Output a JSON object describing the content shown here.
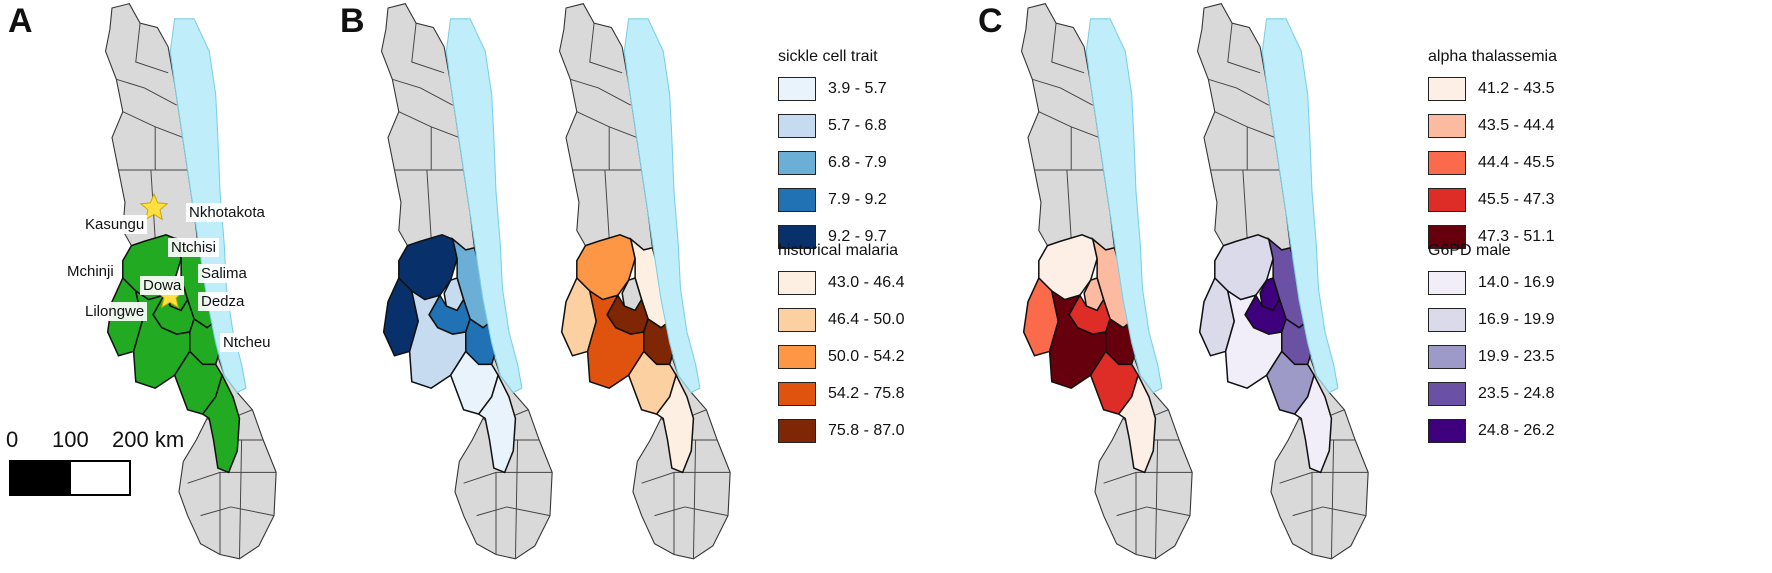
{
  "panels": {
    "a": {
      "label": "A",
      "districts": [
        "Kasungu",
        "Nkhotakota",
        "Ntchisi",
        "Mchinji",
        "Salima",
        "Dowa",
        "Dedza",
        "Lilongwe",
        "Ntcheu"
      ],
      "scale": {
        "zero": "0",
        "mid": "100",
        "end": "200 km"
      }
    },
    "b": {
      "label": "B",
      "legend_sickle": {
        "title": "sickle cell trait",
        "items": [
          {
            "range": "3.9 - 5.7",
            "color": "#e8f3fb"
          },
          {
            "range": "5.7 - 6.8",
            "color": "#c6dbef"
          },
          {
            "range": "6.8 - 7.9",
            "color": "#6baed6"
          },
          {
            "range": "7.9 - 9.2",
            "color": "#2171b5"
          },
          {
            "range": "9.2 - 9.7",
            "color": "#08306b"
          }
        ]
      },
      "legend_malaria": {
        "title": "historical malaria",
        "items": [
          {
            "range": "43.0 - 46.4",
            "color": "#fdf0e2"
          },
          {
            "range": "46.4 - 50.0",
            "color": "#fdd0a2"
          },
          {
            "range": "50.0 - 54.2",
            "color": "#fd9645"
          },
          {
            "range": "54.2 - 75.8",
            "color": "#e0530f"
          },
          {
            "range": "75.8 - 87.0",
            "color": "#7f2704"
          }
        ]
      }
    },
    "c": {
      "label": "C",
      "legend_alpha": {
        "title": "alpha thalassemia",
        "items": [
          {
            "range": "41.2 - 43.5",
            "color": "#fdeee6"
          },
          {
            "range": "43.5 - 44.4",
            "color": "#fcbba1"
          },
          {
            "range": "44.4 - 45.5",
            "color": "#fb6a4a"
          },
          {
            "range": "45.5 - 47.3",
            "color": "#de2d26"
          },
          {
            "range": "47.3 - 51.1",
            "color": "#67000d"
          }
        ]
      },
      "legend_g6pd": {
        "title": "G6PD male",
        "items": [
          {
            "range": "14.0 - 16.9",
            "color": "#f2eef9"
          },
          {
            "range": "16.9 - 19.9",
            "color": "#dadaeb"
          },
          {
            "range": "19.9 - 23.5",
            "color": "#9e9ac8"
          },
          {
            "range": "23.5 - 24.8",
            "color": "#6a51a3"
          },
          {
            "range": "24.8 - 26.2",
            "color": "#3f007d"
          }
        ]
      }
    }
  },
  "colors": {
    "district_base": "#d9d9d9",
    "lake": "#bfeefa",
    "study_green": "#22aa22",
    "star": "#ffe040"
  },
  "maps": {
    "a": {
      "kasungu": "#22aa22",
      "nkhotakota": "#22aa22",
      "ntchisi": "#22aa22",
      "mchinji": "#22aa22",
      "lilongwe": "#22aa22",
      "dowa": "#22aa22",
      "salima": "#22aa22",
      "dedza": "#22aa22",
      "ntcheu": "#22aa22"
    },
    "b1": {
      "kasungu": "#08306b",
      "nkhotakota": "#6baed6",
      "ntchisi": "#c6dbef",
      "mchinji": "#08306b",
      "lilongwe": "#c6dbef",
      "dowa": "#2171b5",
      "salima": "#2171b5",
      "dedza": "#e8f3fb",
      "ntcheu": "#e8f3fb"
    },
    "b2": {
      "kasungu": "#fd9645",
      "nkhotakota": "#fdf0e2",
      "ntchisi": "#d9d9d9",
      "mchinji": "#fdd0a2",
      "lilongwe": "#e0530f",
      "dowa": "#7f2704",
      "salima": "#7f2704",
      "dedza": "#fdd0a2",
      "ntcheu": "#fdf0e2"
    },
    "c1": {
      "kasungu": "#fdeee6",
      "nkhotakota": "#fcbba1",
      "ntchisi": "#fcbba1",
      "mchinji": "#fb6a4a",
      "lilongwe": "#67000d",
      "dowa": "#de2d26",
      "salima": "#67000d",
      "dedza": "#de2d26",
      "ntcheu": "#fdeee6"
    },
    "c2": {
      "kasungu": "#dadaeb",
      "nkhotakota": "#6a51a3",
      "ntchisi": "#3f007d",
      "mchinji": "#dadaeb",
      "lilongwe": "#f2eef9",
      "dowa": "#3f007d",
      "salima": "#6a51a3",
      "dedza": "#9e9ac8",
      "ntcheu": "#f2eef9"
    }
  }
}
